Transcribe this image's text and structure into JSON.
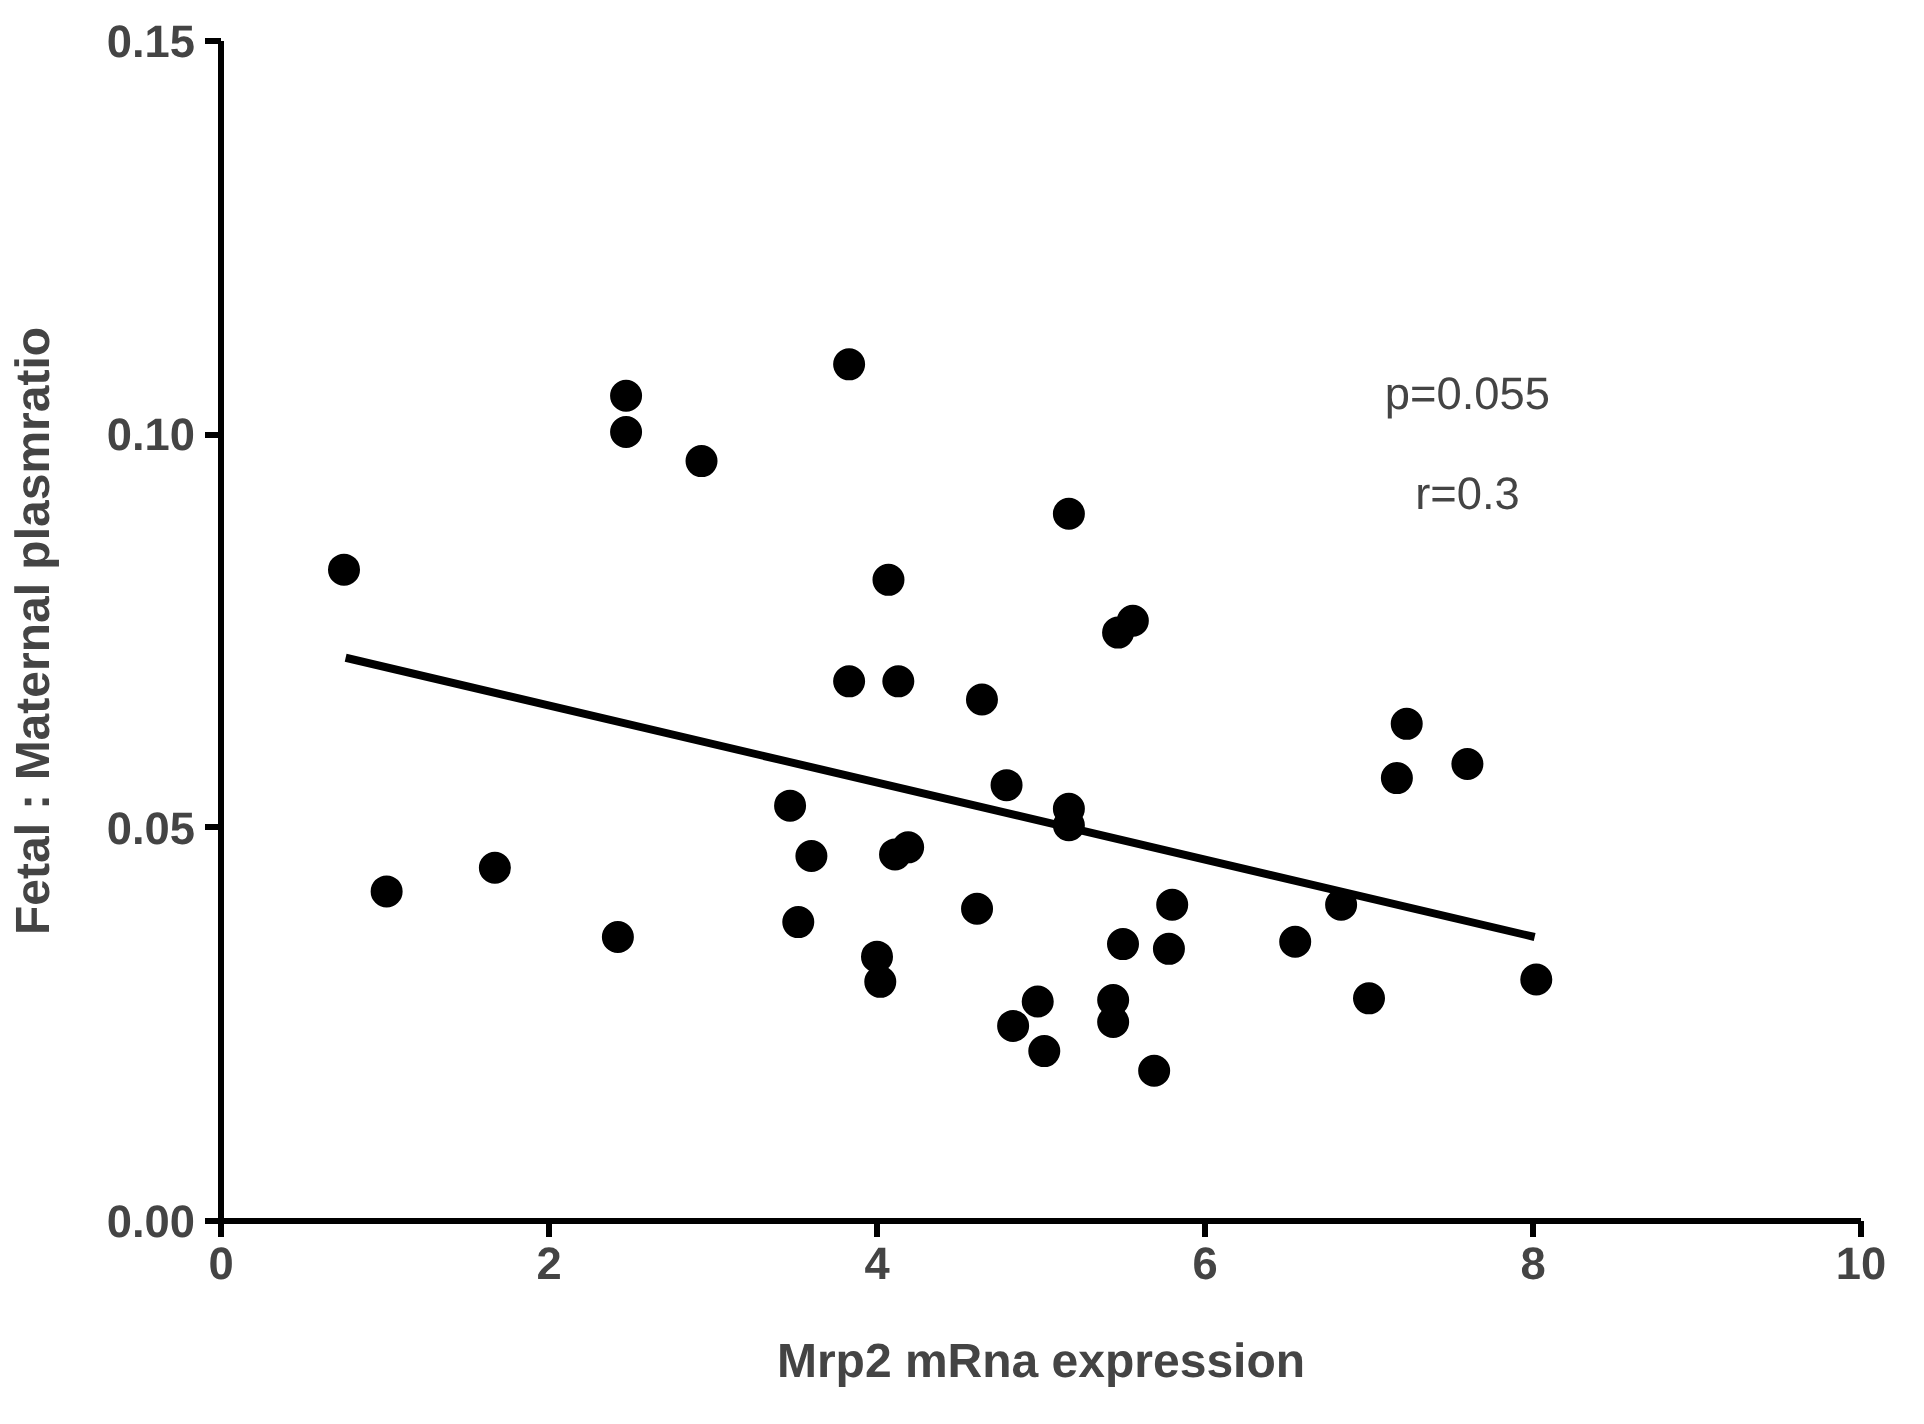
{
  "chart_data": {
    "type": "scatter",
    "xlabel": "Mrp2 mRna expression",
    "ylabel": "Fetal : Maternal plasmratio",
    "xlim": [
      0,
      10
    ],
    "ylim": [
      0,
      0.15
    ],
    "xticks": [
      0,
      2,
      4,
      6,
      8,
      10
    ],
    "yticks": [
      {
        "value": 0,
        "label": "0.00"
      },
      {
        "value": 0.05,
        "label": "0.05"
      },
      {
        "value": 0.1,
        "label": "0.10"
      },
      {
        "value": 0.15,
        "label": "0.15"
      }
    ],
    "grid": false,
    "annotations": [
      "p=0.055",
      "r=0.3"
    ],
    "series": [
      {
        "marker": "circle",
        "color": "#000000",
        "x": [
          0.75,
          1.01,
          1.67,
          2.42,
          2.47,
          2.47,
          2.93,
          3.47,
          3.52,
          3.6,
          3.83,
          3.83,
          4.0,
          4.02,
          4.07,
          4.11,
          4.13,
          4.19,
          4.61,
          4.64,
          4.79,
          4.83,
          4.98,
          5.02,
          5.17,
          5.17,
          5.17,
          5.44,
          5.44,
          5.47,
          5.5,
          5.56,
          5.69,
          5.78,
          5.8,
          6.55,
          6.83,
          7.0,
          7.17,
          7.23,
          7.6,
          8.02
        ],
        "values": [
          0.0828,
          0.0419,
          0.0449,
          0.0361,
          0.1049,
          0.1003,
          0.0966,
          0.0528,
          0.038,
          0.0464,
          0.0686,
          0.1089,
          0.0336,
          0.0304,
          0.0815,
          0.0466,
          0.0686,
          0.0475,
          0.0397,
          0.0663,
          0.0554,
          0.0248,
          0.0279,
          0.0216,
          0.0899,
          0.0524,
          0.0503,
          0.0281,
          0.0253,
          0.0748,
          0.0352,
          0.0763,
          0.0191,
          0.0346,
          0.0402,
          0.0355,
          0.0402,
          0.0283,
          0.0563,
          0.0632,
          0.0581,
          0.0307
        ]
      },
      {
        "type": "line",
        "marker": "none",
        "color": "#000000",
        "x": [
          0.76,
          8.01
        ],
        "values": [
          0.0716,
          0.0361
        ]
      }
    ]
  }
}
